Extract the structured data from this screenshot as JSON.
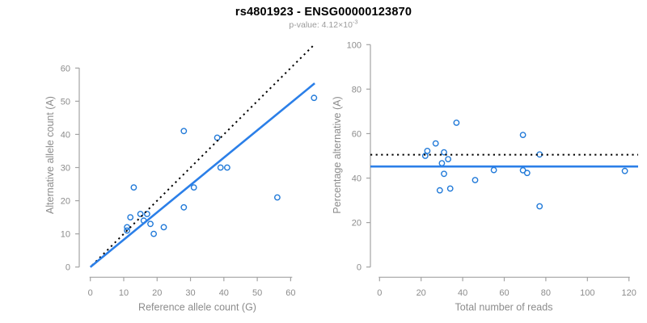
{
  "header": {
    "title": "rs4801923 - ENSG00000123870",
    "p_value_text": "p-value: 4.12×10",
    "p_value_exponent": "-3"
  },
  "colors": {
    "line_blue": "#2b7fe8",
    "point_blue": "#2079d8",
    "dotted_black": "#000000",
    "axis_gray": "#a3a3a3",
    "tick_text_gray": "#8c8c8c",
    "axis_title_gray": "#8c8c8c",
    "subtitle_gray": "#9b9b9b",
    "title_color": "#000000"
  },
  "chart_data": [
    {
      "type": "scatter",
      "name": "allele-counts-scatter",
      "xlabel": "Reference allele count (G)",
      "ylabel": "Alternative allele count (A)",
      "xticks": [
        0,
        10,
        20,
        30,
        40,
        50,
        60
      ],
      "yticks": [
        0,
        10,
        20,
        30,
        40,
        50,
        60
      ],
      "xlim": [
        0,
        67
      ],
      "ylim": [
        0,
        67
      ],
      "grid": false,
      "marker": "open-circle",
      "points": [
        [
          11,
          12
        ],
        [
          11,
          11
        ],
        [
          12,
          15
        ],
        [
          13,
          24
        ],
        [
          15,
          16
        ],
        [
          17,
          16
        ],
        [
          16,
          14
        ],
        [
          18,
          13
        ],
        [
          19,
          10
        ],
        [
          22,
          12
        ],
        [
          28,
          18
        ],
        [
          28,
          41
        ],
        [
          31,
          24
        ],
        [
          38,
          39
        ],
        [
          39,
          30
        ],
        [
          41,
          30
        ],
        [
          56,
          21
        ],
        [
          67,
          51
        ]
      ],
      "lines": [
        {
          "name": "identity-line",
          "style": "dotted",
          "color": "#000000",
          "from": [
            0.5,
            0.5
          ],
          "to": [
            67.3,
            67.3
          ]
        },
        {
          "name": "regression-line",
          "style": "solid",
          "color": "#2b7fe8",
          "from": [
            0,
            0
          ],
          "to": [
            67.2,
            55.4
          ]
        }
      ]
    },
    {
      "type": "scatter",
      "name": "percentage-alternative-scatter",
      "xlabel": "Total number of reads",
      "ylabel": "Percentage alternative (A)",
      "xticks": [
        0,
        20,
        40,
        60,
        80,
        100,
        120
      ],
      "yticks": [
        0,
        20,
        40,
        60,
        80,
        100
      ],
      "xlim": [
        0,
        124
      ],
      "ylim": [
        0,
        100
      ],
      "grid": false,
      "marker": "open-circle",
      "points": [
        [
          23,
          52.2
        ],
        [
          22,
          50.0
        ],
        [
          27,
          55.6
        ],
        [
          37,
          64.9
        ],
        [
          31,
          51.6
        ],
        [
          33,
          48.5
        ],
        [
          30,
          46.7
        ],
        [
          31,
          41.9
        ],
        [
          29,
          34.5
        ],
        [
          34,
          35.3
        ],
        [
          46,
          39.1
        ],
        [
          55,
          43.6
        ],
        [
          69,
          59.4
        ],
        [
          69,
          43.5
        ],
        [
          71,
          42.3
        ],
        [
          77,
          50.6
        ],
        [
          77,
          27.3
        ],
        [
          118,
          43.2
        ]
      ],
      "lines": [
        {
          "name": "expected-50pct-line",
          "style": "dotted",
          "color": "#000000",
          "hline": 50.5
        },
        {
          "name": "mean-percentage-line",
          "style": "solid",
          "color": "#2b7fe8",
          "hline": 45.2
        }
      ]
    }
  ]
}
